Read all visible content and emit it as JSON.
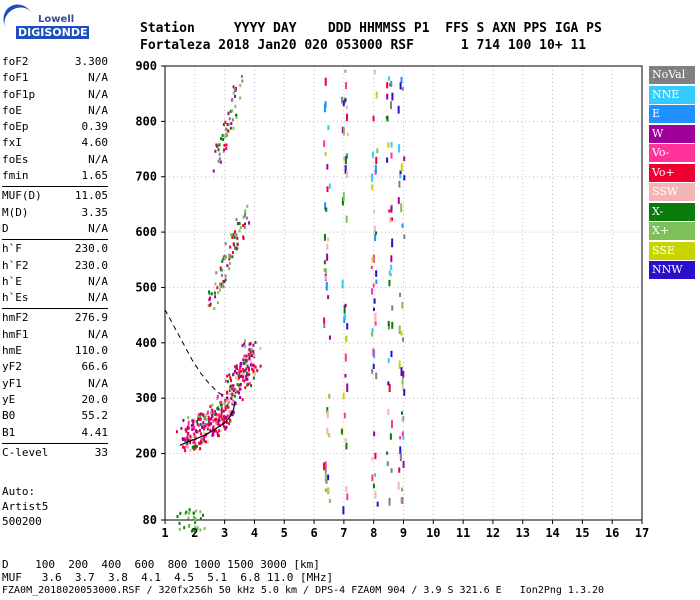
{
  "logo": {
    "line1": "Lowell",
    "line2": "DIGISONDE"
  },
  "header": {
    "line1": "Station     YYYY DAY    DDD HHMMSS P1  FFS S AXN PPS IGA PS",
    "line2": "Fortaleza 2018 Jan20 020 053000 RSF      1 714 100 10+ 11"
  },
  "params_group1": [
    {
      "name": "foF2",
      "value": "3.300"
    },
    {
      "name": "foF1",
      "value": "N/A"
    },
    {
      "name": "foF1p",
      "value": "N/A"
    },
    {
      "name": "foE",
      "value": "N/A"
    },
    {
      "name": "foEp",
      "value": "0.39"
    },
    {
      "name": "fxI",
      "value": "4.60"
    },
    {
      "name": "foEs",
      "value": "N/A"
    },
    {
      "name": "fmin",
      "value": "1.65"
    }
  ],
  "params_group2": [
    {
      "name": "MUF(D)",
      "value": "11.05"
    },
    {
      "name": "M(D)",
      "value": "3.35"
    },
    {
      "name": "D",
      "value": "N/A"
    }
  ],
  "params_group3": [
    {
      "name": "h`F",
      "value": "230.0"
    },
    {
      "name": "h`F2",
      "value": "230.0"
    },
    {
      "name": "h`E",
      "value": "N/A"
    },
    {
      "name": "h`Es",
      "value": "N/A"
    }
  ],
  "params_group4": [
    {
      "name": "hmF2",
      "value": "276.9"
    },
    {
      "name": "hmF1",
      "value": "N/A"
    },
    {
      "name": "hmE",
      "value": "110.0"
    },
    {
      "name": "yF2",
      "value": "66.6"
    },
    {
      "name": "yF1",
      "value": "N/A"
    },
    {
      "name": "yE",
      "value": "20.0"
    },
    {
      "name": "B0",
      "value": "55.2"
    },
    {
      "name": "B1",
      "value": "4.41"
    }
  ],
  "params_group5": [
    {
      "name": "C-level",
      "value": "33"
    }
  ],
  "auto": {
    "line1": "Auto:",
    "line2": "Artist5",
    "line3": "500200"
  },
  "legend": [
    {
      "label": "NoVal",
      "color": "#808080"
    },
    {
      "label": "NNE",
      "color": "#33ccff"
    },
    {
      "label": "E",
      "color": "#1e90ff"
    },
    {
      "label": "W",
      "color": "#a0009a"
    },
    {
      "label": "Vo-",
      "color": "#ff3399"
    },
    {
      "label": "Vo+",
      "color": "#f00030"
    },
    {
      "label": "SSW",
      "color": "#f4b4b4"
    },
    {
      "label": "X-",
      "color": "#0a7a0a"
    },
    {
      "label": "X+",
      "color": "#7dc05a"
    },
    {
      "label": "SSE",
      "color": "#c8d400"
    },
    {
      "label": "NNW",
      "color": "#2a10c8"
    }
  ],
  "footer": {
    "line1": "D    100  200  400  600  800 1000 1500 3000 [km]",
    "line2": "MUF   3.6  3.7  3.8  4.1  4.5  5.1  6.8 11.0 [MHz]",
    "line3": "FZA0M_2018020053000.RSF / 320fx256h 50 kHz 5.0 km / DPS-4 FZA0M 904 / 3.9 S 321.6 E   Ion2Png 1.3.20"
  },
  "chart_data": {
    "type": "scatter",
    "xlim": [
      1,
      17
    ],
    "ylim": [
      80,
      900
    ],
    "x_ticks": [
      1,
      2,
      3,
      4,
      5,
      6,
      7,
      8,
      9,
      10,
      11,
      12,
      13,
      14,
      15,
      16,
      17
    ],
    "y_ticks": [
      80,
      200,
      300,
      400,
      500,
      600,
      700,
      800,
      900
    ],
    "grid": true,
    "traces": [
      {
        "name": "F2 trace",
        "points": [
          [
            1.6,
            235
          ],
          [
            1.8,
            238
          ],
          [
            2.0,
            240
          ],
          [
            2.2,
            245
          ],
          [
            2.4,
            250
          ],
          [
            2.6,
            258
          ],
          [
            2.8,
            268
          ],
          [
            3.0,
            280
          ],
          [
            3.15,
            295
          ],
          [
            3.3,
            320
          ],
          [
            3.5,
            340
          ],
          [
            3.7,
            360
          ],
          [
            3.8,
            380
          ],
          [
            4.0,
            370
          ]
        ]
      },
      {
        "name": "F2 echo",
        "points": [
          [
            2.5,
            470
          ],
          [
            2.7,
            500
          ],
          [
            2.9,
            530
          ],
          [
            3.1,
            560
          ],
          [
            3.3,
            580
          ],
          [
            3.5,
            610
          ],
          [
            3.7,
            640
          ]
        ]
      },
      {
        "name": "F2 3rd",
        "points": [
          [
            2.7,
            730
          ],
          [
            2.9,
            760
          ],
          [
            3.1,
            790
          ],
          [
            3.3,
            830
          ],
          [
            3.5,
            880
          ]
        ]
      },
      {
        "name": "Es",
        "points": [
          [
            1.5,
            82
          ],
          [
            1.8,
            83
          ],
          [
            2.0,
            82
          ],
          [
            2.2,
            81
          ]
        ]
      }
    ],
    "profile_curve": [
      [
        1.5,
        215
      ],
      [
        1.8,
        222
      ],
      [
        2.1,
        228
      ],
      [
        2.4,
        235
      ],
      [
        2.7,
        245
      ],
      [
        3.0,
        255
      ],
      [
        3.2,
        268
      ],
      [
        3.3,
        280
      ],
      [
        3.35,
        295
      ]
    ],
    "dashed_curve": [
      [
        1.0,
        460
      ],
      [
        1.3,
        430
      ],
      [
        1.6,
        400
      ],
      [
        1.9,
        370
      ],
      [
        2.2,
        345
      ],
      [
        2.5,
        325
      ],
      [
        2.8,
        310
      ],
      [
        3.1,
        300
      ]
    ],
    "interference_columns": [
      6.4,
      7.0,
      8.0,
      8.5,
      8.9
    ]
  }
}
